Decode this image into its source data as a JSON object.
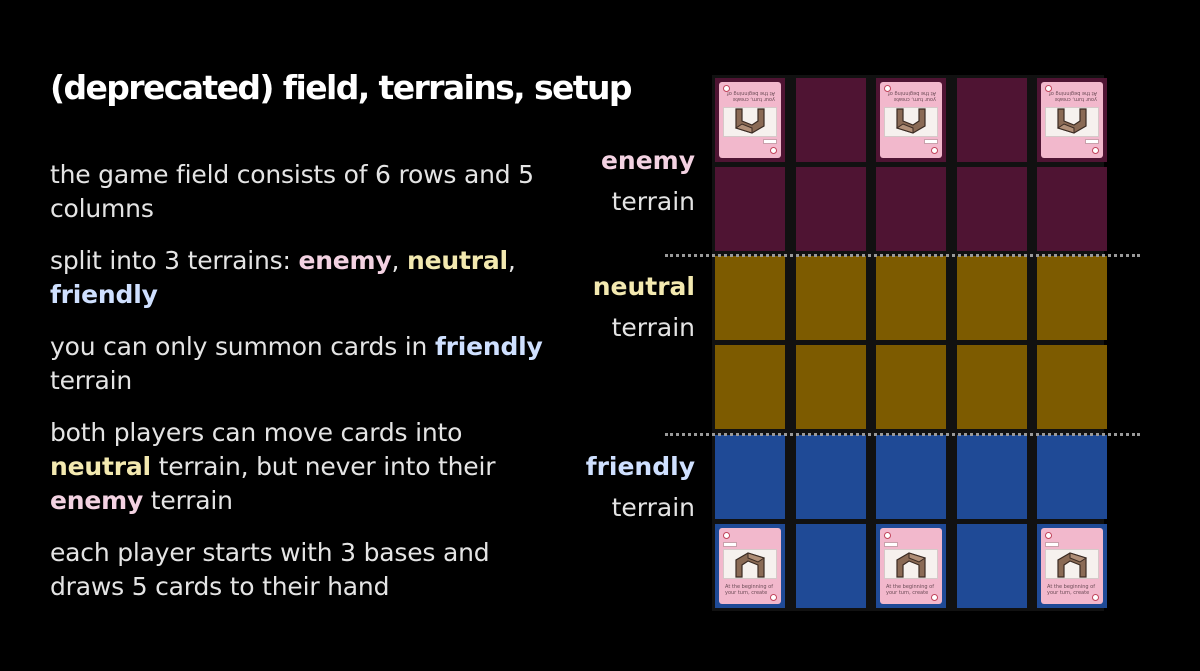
{
  "slide": {
    "title": "(deprecated) field, terrains, setup",
    "points": [
      [
        {
          "t": "the game ",
          "s": "n"
        },
        {
          "t": "field",
          "s": "b"
        },
        {
          "t": " consists of 6 ",
          "s": "n"
        },
        {
          "t": "rows",
          "s": "b"
        },
        {
          "t": " and 5 ",
          "s": "n"
        },
        {
          "t": "columns",
          "s": "b"
        }
      ],
      [
        {
          "t": "split into ",
          "s": "n"
        },
        {
          "t": "3 terrains",
          "s": "b"
        },
        {
          "t": ": ",
          "s": "n"
        },
        {
          "t": "enemy",
          "s": "enemy"
        },
        {
          "t": ", ",
          "s": "n"
        },
        {
          "t": "neutral",
          "s": "neutral"
        },
        {
          "t": ", ",
          "s": "n"
        },
        {
          "t": "friendly",
          "s": "friendly"
        }
      ],
      [
        {
          "t": "you can only ",
          "s": "n"
        },
        {
          "t": "summon",
          "s": "b"
        },
        {
          "t": " cards in ",
          "s": "n"
        },
        {
          "t": "friendly",
          "s": "friendly"
        },
        {
          "t": " terrain",
          "s": "n"
        }
      ],
      [
        {
          "t": "both players can ",
          "s": "n"
        },
        {
          "t": "move",
          "s": "b"
        },
        {
          "t": " cards into ",
          "s": "n"
        },
        {
          "t": "neutral",
          "s": "neutral"
        },
        {
          "t": " terrain, but never into their ",
          "s": "n"
        },
        {
          "t": "enemy",
          "s": "enemy"
        },
        {
          "t": " terrain",
          "s": "n"
        }
      ],
      [
        {
          "t": "each player starts with ",
          "s": "n"
        },
        {
          "t": "3 bases",
          "s": "b"
        },
        {
          "t": " and draws ",
          "s": "n"
        },
        {
          "t": "5 cards",
          "s": "b"
        },
        {
          "t": " to their ",
          "s": "n"
        },
        {
          "t": "hand",
          "s": "b"
        }
      ]
    ]
  },
  "terrains": {
    "enemy": {
      "name": "enemy",
      "word": "terrain",
      "color": "#4f1433",
      "text_color": "#f3d2e2"
    },
    "neutral": {
      "name": "neutral",
      "word": "terrain",
      "color": "#7d5b00",
      "text_color": "#f3e9b0"
    },
    "friendly": {
      "name": "friendly",
      "word": "terrain",
      "color": "#1f4a96",
      "text_color": "#cfe0ff"
    }
  },
  "field": {
    "rows": 6,
    "columns": 5,
    "row_terrains": [
      "enemy",
      "enemy",
      "neutral",
      "neutral",
      "friendly",
      "friendly"
    ],
    "base_columns": [
      0,
      2,
      4
    ],
    "enemy_base_text": [
      "your turn, create",
      "At the beginning of"
    ],
    "friendly_base_text": [
      "At the beginning of",
      "your turn, create"
    ],
    "card_color": "#f2b8cc"
  }
}
